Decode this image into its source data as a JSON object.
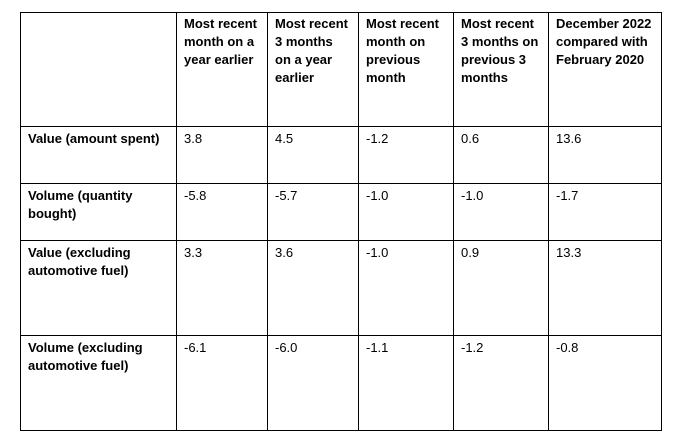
{
  "table": {
    "headers": [
      "",
      "Most recent month on a year earlier",
      "Most recent 3 months on a year earlier",
      "Most recent month on previous month",
      "Most recent 3 months on previous 3 months",
      "December 2022 compared with February 2020"
    ],
    "rows": [
      {
        "label": "Value (amount spent)",
        "values": [
          "3.8",
          "4.5",
          "-1.2",
          "0.6",
          "13.6"
        ]
      },
      {
        "label": "Volume (quantity bought)",
        "values": [
          "-5.8",
          "-5.7",
          "-1.0",
          "-1.0",
          "-1.7"
        ]
      },
      {
        "label": "Value (excluding automotive fuel)",
        "values": [
          "3.3",
          "3.6",
          "-1.0",
          "0.9",
          "13.3"
        ]
      },
      {
        "label": "Volume (excluding automotive fuel)",
        "values": [
          "-6.1",
          "-6.0",
          "-1.1",
          "-1.2",
          "-0.8"
        ]
      }
    ]
  }
}
